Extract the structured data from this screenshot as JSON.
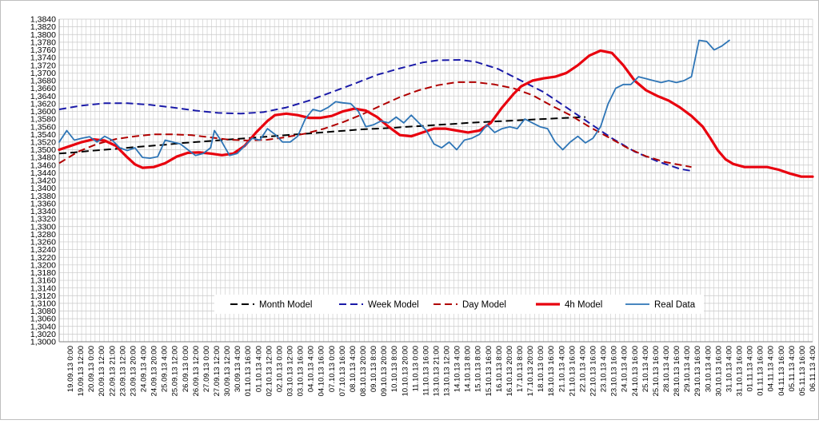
{
  "chart_data": {
    "type": "line",
    "title": "",
    "xlabel": "",
    "ylabel": "",
    "ylim": [
      1.3,
      1.384
    ],
    "y_tick_step": 0.002,
    "y_tick_labels": [
      "1,3000",
      "1,3020",
      "1,3040",
      "1,3060",
      "1,3080",
      "1,3100",
      "1,3120",
      "1,3140",
      "1,3160",
      "1,3180",
      "1,3200",
      "1,3220",
      "1,3240",
      "1,3260",
      "1,3280",
      "1,3300",
      "1,3320",
      "1,3340",
      "1,3360",
      "1,3380",
      "1,3400",
      "1,3420",
      "1,3440",
      "1,3460",
      "1,3480",
      "1,3500",
      "1,3520",
      "1,3540",
      "1,3560",
      "1,3580",
      "1,3600",
      "1,3620",
      "1,3640",
      "1,3660",
      "1,3680",
      "1,3700",
      "1,3720",
      "1,3740",
      "1,3760",
      "1,3780",
      "1,3800",
      "1,3820",
      "1,3840"
    ],
    "x_tick_labels": [
      "19.09.13 0:00",
      "19.09.13 12:00",
      "20.09.13 0:00",
      "20.09.13 12:00",
      "22.09.13 21:00",
      "23.09.13 12:00",
      "23.09.13 20:00",
      "24.09.13 4:00",
      "24.09.13 20:00",
      "25.09.13 4:00",
      "25.09.13 12:00",
      "26.09.13 0:00",
      "26.09.13 12:00",
      "27.09.13 0:00",
      "27.09.13 12:00",
      "30.09.13 12:00",
      "30.09.13 4:00",
      "01.10.13 16:00",
      "01.10.13 4:00",
      "02.10.13 12:00",
      "02.10.13 0:00",
      "03.10.13 12:00",
      "03.10.13 16:00",
      "04.10.13 4:00",
      "04.10.13 16:00",
      "07.10.13 0:00",
      "07.10.13 16:00",
      "08.10.13 4:00",
      "08.10.13 20:00",
      "09.10.13 8:00",
      "09.10.13 20:00",
      "10.10.13 8:00",
      "10.10.13 20:00",
      "11.10.13 0:00",
      "11.10.13 16:00",
      "13.10.13 21:00",
      "13.10.13 12:00",
      "14.10.13 4:00",
      "14.10.13 8:00",
      "15.10.13 8:00",
      "15.10.13 16:00",
      "16.10.13 8:00",
      "16.10.13 20:00",
      "17.10.13 8:00",
      "17.10.13 20:00",
      "18.10.13 0:00",
      "18.10.13 16:00",
      "21.10.13 4:00",
      "21.10.13 16:00",
      "22.10.13 4:00",
      "22.10.13 16:00",
      "23.10.13 4:00",
      "23.10.13 16:00",
      "24.10.13 4:00",
      "24.10.13 16:00",
      "25.10.13 4:00",
      "25.10.13 16:00",
      "28.10.13 4:00",
      "28.10.13 16:00",
      "29.10.13 4:00",
      "29.10.13 16:00",
      "30.10.13 4:00",
      "30.10.13 16:00",
      "31.10.13 4:00",
      "31.10.13 16:00",
      "01.11.13 4:00",
      "01.11.13 16:00",
      "04.11.13 4:00",
      "04.11.13 16:00",
      "05.11.13 4:00",
      "05.11.13 16:00",
      "06.11.13 4:00"
    ],
    "legend_position": "bottom-center",
    "grid": true,
    "series": [
      {
        "name": "Month Model",
        "color": "#000000",
        "style": "dashed",
        "points": [
          [
            0,
            1.349
          ],
          [
            4,
            1.3493
          ],
          [
            8,
            1.3497
          ],
          [
            12,
            1.35
          ],
          [
            16,
            1.3503
          ],
          [
            20,
            1.3507
          ],
          [
            24,
            1.351
          ],
          [
            28,
            1.3513
          ],
          [
            32,
            1.3517
          ],
          [
            36,
            1.352
          ],
          [
            40,
            1.3523
          ],
          [
            44,
            1.3526
          ],
          [
            48,
            1.3529
          ],
          [
            52,
            1.3532
          ],
          [
            56,
            1.3535
          ],
          [
            60,
            1.3538
          ],
          [
            64,
            1.3541
          ],
          [
            68,
            1.3544
          ],
          [
            72,
            1.3547
          ],
          [
            76,
            1.355
          ],
          [
            80,
            1.3553
          ],
          [
            84,
            1.3555
          ],
          [
            88,
            1.3557
          ],
          [
            92,
            1.356
          ],
          [
            96,
            1.3562
          ],
          [
            100,
            1.3565
          ],
          [
            104,
            1.3567
          ],
          [
            108,
            1.357
          ],
          [
            112,
            1.3572
          ],
          [
            116,
            1.3574
          ],
          [
            120,
            1.3576
          ],
          [
            124,
            1.3578
          ],
          [
            128,
            1.358
          ],
          [
            132,
            1.3582
          ],
          [
            136,
            1.3584
          ],
          [
            139,
            1.3585
          ]
        ]
      },
      {
        "name": "Week Model",
        "color": "#1a1aa8",
        "style": "dashed",
        "points": [
          [
            0,
            1.3605
          ],
          [
            6,
            1.3615
          ],
          [
            12,
            1.3621
          ],
          [
            18,
            1.3621
          ],
          [
            24,
            1.3617
          ],
          [
            30,
            1.361
          ],
          [
            36,
            1.3602
          ],
          [
            42,
            1.3596
          ],
          [
            48,
            1.3594
          ],
          [
            54,
            1.3598
          ],
          [
            60,
            1.361
          ],
          [
            66,
            1.3628
          ],
          [
            72,
            1.365
          ],
          [
            78,
            1.3672
          ],
          [
            84,
            1.3695
          ],
          [
            90,
            1.3712
          ],
          [
            96,
            1.3727
          ],
          [
            100,
            1.3733
          ],
          [
            106,
            1.3734
          ],
          [
            110,
            1.3729
          ],
          [
            116,
            1.371
          ],
          [
            122,
            1.368
          ],
          [
            128,
            1.365
          ],
          [
            134,
            1.361
          ],
          [
            140,
            1.357
          ],
          [
            146,
            1.353
          ],
          [
            152,
            1.3495
          ],
          [
            158,
            1.347
          ],
          [
            164,
            1.345
          ],
          [
            167,
            1.3445
          ]
        ]
      },
      {
        "name": "Day Model",
        "color": "#b00000",
        "style": "dashed",
        "points": [
          [
            0,
            1.3465
          ],
          [
            5,
            1.3495
          ],
          [
            10,
            1.3515
          ],
          [
            15,
            1.3528
          ],
          [
            20,
            1.3535
          ],
          [
            25,
            1.354
          ],
          [
            30,
            1.354
          ],
          [
            35,
            1.3538
          ],
          [
            40,
            1.3532
          ],
          [
            45,
            1.3526
          ],
          [
            50,
            1.3524
          ],
          [
            55,
            1.3526
          ],
          [
            60,
            1.3533
          ],
          [
            65,
            1.3542
          ],
          [
            70,
            1.3555
          ],
          [
            75,
            1.3572
          ],
          [
            80,
            1.3592
          ],
          [
            85,
            1.3615
          ],
          [
            90,
            1.3637
          ],
          [
            95,
            1.3655
          ],
          [
            100,
            1.3668
          ],
          [
            105,
            1.3676
          ],
          [
            110,
            1.3676
          ],
          [
            115,
            1.367
          ],
          [
            120,
            1.366
          ],
          [
            125,
            1.3642
          ],
          [
            130,
            1.3615
          ],
          [
            135,
            1.359
          ],
          [
            140,
            1.356
          ],
          [
            145,
            1.3533
          ],
          [
            150,
            1.3505
          ],
          [
            155,
            1.3483
          ],
          [
            160,
            1.3468
          ],
          [
            167,
            1.3455
          ]
        ]
      },
      {
        "name": "4h Model",
        "color": "#e8000e",
        "style": "solid",
        "points": [
          [
            0,
            1.35
          ],
          [
            3,
            1.351
          ],
          [
            6,
            1.352
          ],
          [
            9,
            1.3527
          ],
          [
            12,
            1.3524
          ],
          [
            15,
            1.351
          ],
          [
            18,
            1.348
          ],
          [
            20,
            1.3462
          ],
          [
            22,
            1.3453
          ],
          [
            25,
            1.3455
          ],
          [
            28,
            1.3465
          ],
          [
            31,
            1.3482
          ],
          [
            34,
            1.3492
          ],
          [
            37,
            1.3493
          ],
          [
            40,
            1.349
          ],
          [
            43,
            1.3486
          ],
          [
            46,
            1.349
          ],
          [
            49,
            1.351
          ],
          [
            52,
            1.3545
          ],
          [
            55,
            1.3575
          ],
          [
            57,
            1.359
          ],
          [
            60,
            1.3594
          ],
          [
            63,
            1.359
          ],
          [
            66,
            1.3583
          ],
          [
            69,
            1.3583
          ],
          [
            72,
            1.3588
          ],
          [
            75,
            1.36
          ],
          [
            78,
            1.3607
          ],
          [
            81,
            1.3602
          ],
          [
            84,
            1.3585
          ],
          [
            87,
            1.356
          ],
          [
            90,
            1.3538
          ],
          [
            93,
            1.3535
          ],
          [
            96,
            1.3545
          ],
          [
            99,
            1.3555
          ],
          [
            102,
            1.3555
          ],
          [
            105,
            1.355
          ],
          [
            108,
            1.3545
          ],
          [
            111,
            1.355
          ],
          [
            114,
            1.357
          ],
          [
            117,
            1.361
          ],
          [
            120,
            1.3645
          ],
          [
            122,
            1.3665
          ],
          [
            125,
            1.368
          ],
          [
            128,
            1.3686
          ],
          [
            131,
            1.369
          ],
          [
            134,
            1.37
          ],
          [
            137,
            1.372
          ],
          [
            140,
            1.3745
          ],
          [
            143,
            1.3758
          ],
          [
            146,
            1.3752
          ],
          [
            149,
            1.372
          ],
          [
            152,
            1.368
          ],
          [
            155,
            1.3655
          ],
          [
            158,
            1.364
          ],
          [
            161,
            1.3628
          ],
          [
            164,
            1.361
          ],
          [
            167,
            1.3588
          ],
          [
            170,
            1.356
          ],
          [
            172,
            1.353
          ],
          [
            174,
            1.3498
          ],
          [
            176,
            1.3475
          ],
          [
            178,
            1.3463
          ],
          [
            181,
            1.3455
          ],
          [
            184,
            1.3455
          ],
          [
            187,
            1.3455
          ],
          [
            190,
            1.3448
          ],
          [
            193,
            1.3438
          ],
          [
            196,
            1.343
          ],
          [
            199,
            1.343
          ]
        ]
      },
      {
        "name": "Real Data",
        "color": "#2e75b6",
        "style": "solid",
        "points": [
          [
            0,
            1.352
          ],
          [
            2,
            1.355
          ],
          [
            4,
            1.3525
          ],
          [
            6,
            1.353
          ],
          [
            8,
            1.3534
          ],
          [
            10,
            1.352
          ],
          [
            12,
            1.3535
          ],
          [
            14,
            1.3525
          ],
          [
            16,
            1.3505
          ],
          [
            18,
            1.3498
          ],
          [
            20,
            1.3505
          ],
          [
            22,
            1.348
          ],
          [
            24,
            1.3478
          ],
          [
            26,
            1.3482
          ],
          [
            28,
            1.3525
          ],
          [
            30,
            1.352
          ],
          [
            32,
            1.3515
          ],
          [
            34,
            1.35
          ],
          [
            36,
            1.3485
          ],
          [
            38,
            1.349
          ],
          [
            40,
            1.3505
          ],
          [
            41,
            1.355
          ],
          [
            43,
            1.352
          ],
          [
            45,
            1.3485
          ],
          [
            47,
            1.349
          ],
          [
            49,
            1.351
          ],
          [
            51,
            1.353
          ],
          [
            53,
            1.3525
          ],
          [
            55,
            1.3555
          ],
          [
            57,
            1.354
          ],
          [
            59,
            1.352
          ],
          [
            61,
            1.352
          ],
          [
            63,
            1.3535
          ],
          [
            65,
            1.358
          ],
          [
            67,
            1.3605
          ],
          [
            69,
            1.36
          ],
          [
            71,
            1.361
          ],
          [
            73,
            1.3625
          ],
          [
            75,
            1.3622
          ],
          [
            77,
            1.362
          ],
          [
            79,
            1.36
          ],
          [
            81,
            1.356
          ],
          [
            83,
            1.3565
          ],
          [
            85,
            1.3575
          ],
          [
            87,
            1.357
          ],
          [
            89,
            1.3585
          ],
          [
            91,
            1.357
          ],
          [
            93,
            1.359
          ],
          [
            95,
            1.357
          ],
          [
            97,
            1.355
          ],
          [
            99,
            1.3515
          ],
          [
            101,
            1.3505
          ],
          [
            103,
            1.352
          ],
          [
            105,
            1.35
          ],
          [
            107,
            1.3525
          ],
          [
            109,
            1.353
          ],
          [
            111,
            1.354
          ],
          [
            113,
            1.3565
          ],
          [
            115,
            1.3545
          ],
          [
            117,
            1.3555
          ],
          [
            119,
            1.356
          ],
          [
            121,
            1.3555
          ],
          [
            123,
            1.358
          ],
          [
            125,
            1.357
          ],
          [
            127,
            1.356
          ],
          [
            129,
            1.3555
          ],
          [
            131,
            1.352
          ],
          [
            133,
            1.35
          ],
          [
            135,
            1.352
          ],
          [
            137,
            1.3535
          ],
          [
            139,
            1.3518
          ],
          [
            141,
            1.353
          ],
          [
            143,
            1.356
          ],
          [
            145,
            1.362
          ],
          [
            147,
            1.366
          ],
          [
            149,
            1.367
          ],
          [
            151,
            1.367
          ],
          [
            153,
            1.369
          ],
          [
            155,
            1.3685
          ],
          [
            157,
            1.368
          ],
          [
            159,
            1.3675
          ],
          [
            161,
            1.368
          ],
          [
            163,
            1.3675
          ],
          [
            165,
            1.368
          ],
          [
            167,
            1.369
          ],
          [
            169,
            1.3785
          ],
          [
            171,
            1.3782
          ],
          [
            173,
            1.376
          ],
          [
            175,
            1.377
          ],
          [
            177,
            1.3785
          ]
        ]
      }
    ]
  }
}
